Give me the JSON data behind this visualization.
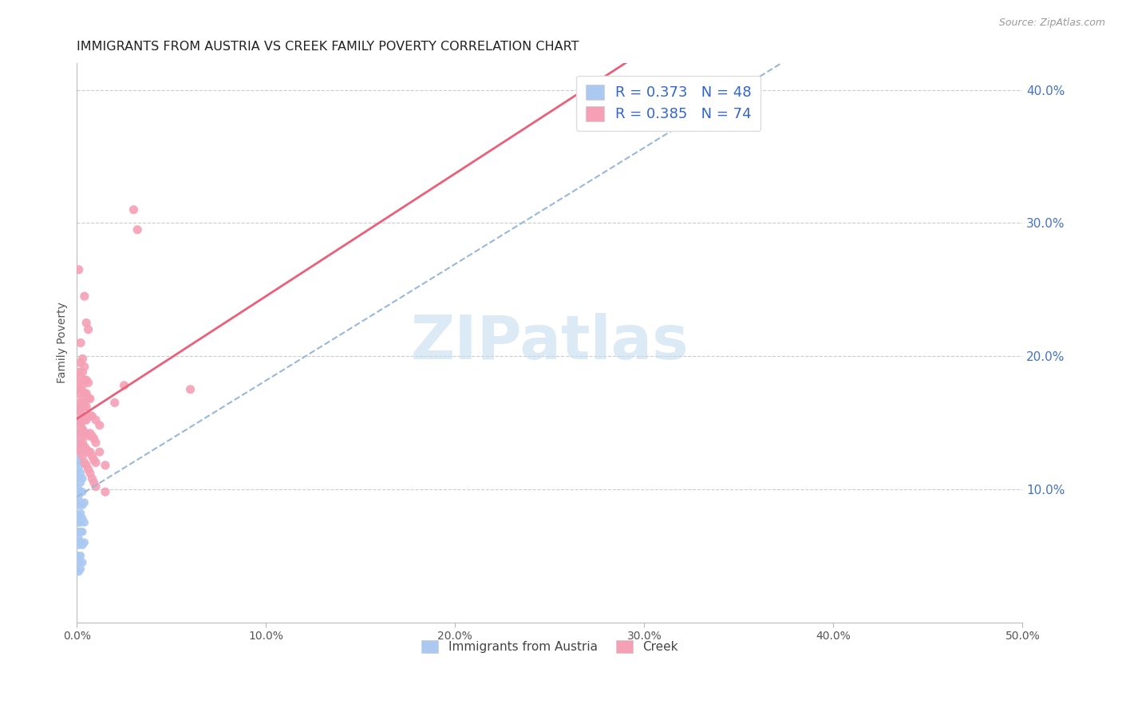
{
  "title": "IMMIGRANTS FROM AUSTRIA VS CREEK FAMILY POVERTY CORRELATION CHART",
  "source": "Source: ZipAtlas.com",
  "ylabel": "Family Poverty",
  "xlim": [
    0.0,
    0.5
  ],
  "ylim": [
    0.0,
    0.42
  ],
  "xtick_vals": [
    0.0,
    0.1,
    0.2,
    0.3,
    0.4,
    0.5
  ],
  "xticklabels": [
    "0.0%",
    "10.0%",
    "20.0%",
    "30.0%",
    "40.0%",
    "50.0%"
  ],
  "ytick_vals": [
    0.1,
    0.2,
    0.3,
    0.4
  ],
  "yticklabels_right": [
    "10.0%",
    "20.0%",
    "30.0%",
    "40.0%"
  ],
  "austria_R": 0.373,
  "austria_N": 48,
  "creek_R": 0.385,
  "creek_N": 74,
  "austria_color": "#aac8f0",
  "creek_color": "#f5a0b5",
  "austria_line_color": "#5580cc",
  "creek_line_color": "#e8607a",
  "trendline_dashed_color": "#99b8d8",
  "watermark": "ZIPatlas",
  "watermark_color": "#c5ddf0",
  "austria_scatter": [
    [
      0.001,
      0.038
    ],
    [
      0.001,
      0.045
    ],
    [
      0.001,
      0.05
    ],
    [
      0.001,
      0.058
    ],
    [
      0.001,
      0.063
    ],
    [
      0.001,
      0.068
    ],
    [
      0.001,
      0.075
    ],
    [
      0.001,
      0.08
    ],
    [
      0.001,
      0.088
    ],
    [
      0.001,
      0.095
    ],
    [
      0.001,
      0.1
    ],
    [
      0.001,
      0.108
    ],
    [
      0.001,
      0.115
    ],
    [
      0.001,
      0.122
    ],
    [
      0.001,
      0.128
    ],
    [
      0.001,
      0.135
    ],
    [
      0.001,
      0.142
    ],
    [
      0.002,
      0.04
    ],
    [
      0.002,
      0.05
    ],
    [
      0.002,
      0.06
    ],
    [
      0.002,
      0.068
    ],
    [
      0.002,
      0.075
    ],
    [
      0.002,
      0.082
    ],
    [
      0.002,
      0.09
    ],
    [
      0.002,
      0.098
    ],
    [
      0.002,
      0.105
    ],
    [
      0.002,
      0.112
    ],
    [
      0.002,
      0.12
    ],
    [
      0.002,
      0.128
    ],
    [
      0.002,
      0.135
    ],
    [
      0.002,
      0.142
    ],
    [
      0.002,
      0.15
    ],
    [
      0.002,
      0.158
    ],
    [
      0.002,
      0.162
    ],
    [
      0.003,
      0.045
    ],
    [
      0.003,
      0.058
    ],
    [
      0.003,
      0.068
    ],
    [
      0.003,
      0.078
    ],
    [
      0.003,
      0.088
    ],
    [
      0.003,
      0.098
    ],
    [
      0.003,
      0.108
    ],
    [
      0.003,
      0.12
    ],
    [
      0.003,
      0.132
    ],
    [
      0.003,
      0.145
    ],
    [
      0.003,
      0.155
    ],
    [
      0.004,
      0.06
    ],
    [
      0.004,
      0.075
    ],
    [
      0.004,
      0.09
    ]
  ],
  "creek_scatter": [
    [
      0.001,
      0.132
    ],
    [
      0.001,
      0.142
    ],
    [
      0.001,
      0.152
    ],
    [
      0.001,
      0.162
    ],
    [
      0.001,
      0.172
    ],
    [
      0.001,
      0.18
    ],
    [
      0.001,
      0.188
    ],
    [
      0.001,
      0.265
    ],
    [
      0.002,
      0.128
    ],
    [
      0.002,
      0.138
    ],
    [
      0.002,
      0.148
    ],
    [
      0.002,
      0.158
    ],
    [
      0.002,
      0.165
    ],
    [
      0.002,
      0.175
    ],
    [
      0.002,
      0.185
    ],
    [
      0.002,
      0.195
    ],
    [
      0.002,
      0.21
    ],
    [
      0.003,
      0.125
    ],
    [
      0.003,
      0.135
    ],
    [
      0.003,
      0.145
    ],
    [
      0.003,
      0.155
    ],
    [
      0.003,
      0.168
    ],
    [
      0.003,
      0.178
    ],
    [
      0.003,
      0.188
    ],
    [
      0.003,
      0.198
    ],
    [
      0.004,
      0.12
    ],
    [
      0.004,
      0.132
    ],
    [
      0.004,
      0.142
    ],
    [
      0.004,
      0.152
    ],
    [
      0.004,
      0.162
    ],
    [
      0.004,
      0.172
    ],
    [
      0.004,
      0.182
    ],
    [
      0.004,
      0.192
    ],
    [
      0.004,
      0.245
    ],
    [
      0.005,
      0.118
    ],
    [
      0.005,
      0.13
    ],
    [
      0.005,
      0.142
    ],
    [
      0.005,
      0.152
    ],
    [
      0.005,
      0.162
    ],
    [
      0.005,
      0.172
    ],
    [
      0.005,
      0.182
    ],
    [
      0.005,
      0.225
    ],
    [
      0.006,
      0.115
    ],
    [
      0.006,
      0.128
    ],
    [
      0.006,
      0.14
    ],
    [
      0.006,
      0.155
    ],
    [
      0.006,
      0.168
    ],
    [
      0.006,
      0.18
    ],
    [
      0.006,
      0.22
    ],
    [
      0.007,
      0.112
    ],
    [
      0.007,
      0.128
    ],
    [
      0.007,
      0.142
    ],
    [
      0.007,
      0.155
    ],
    [
      0.007,
      0.168
    ],
    [
      0.008,
      0.108
    ],
    [
      0.008,
      0.125
    ],
    [
      0.008,
      0.14
    ],
    [
      0.008,
      0.155
    ],
    [
      0.009,
      0.105
    ],
    [
      0.009,
      0.122
    ],
    [
      0.009,
      0.138
    ],
    [
      0.01,
      0.102
    ],
    [
      0.01,
      0.12
    ],
    [
      0.01,
      0.135
    ],
    [
      0.01,
      0.152
    ],
    [
      0.012,
      0.128
    ],
    [
      0.012,
      0.148
    ],
    [
      0.015,
      0.098
    ],
    [
      0.015,
      0.118
    ],
    [
      0.02,
      0.165
    ],
    [
      0.025,
      0.178
    ],
    [
      0.03,
      0.31
    ],
    [
      0.032,
      0.295
    ],
    [
      0.06,
      0.175
    ]
  ]
}
